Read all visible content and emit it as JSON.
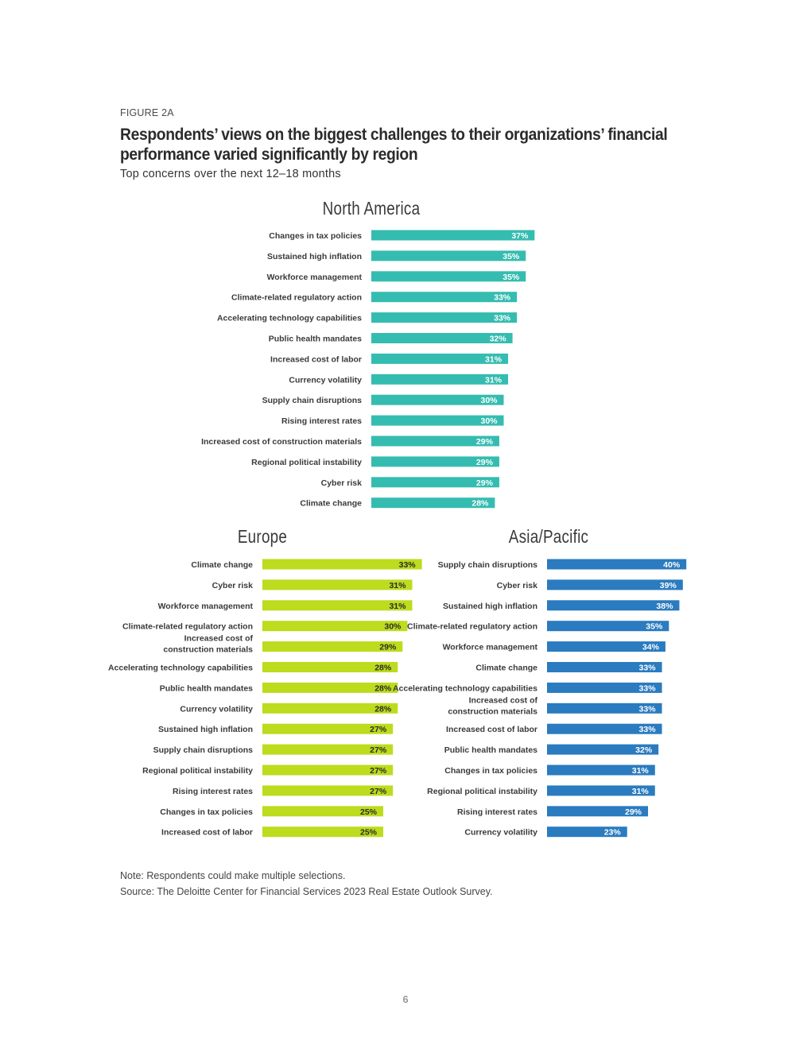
{
  "figure_label": "FIGURE 2A",
  "title_lines": [
    "Respondents’ views on the biggest challenges to their organizations’ financial",
    "performance varied significantly by region"
  ],
  "subtitle": "Top concerns over the next 12–18 months",
  "chart_data": [
    {
      "type": "bar",
      "orientation": "horizontal",
      "title": "North America",
      "color": "#35bcb0",
      "value_label_color": "#ffffff",
      "categories": [
        "Changes in tax policies",
        "Sustained high inflation",
        "Workforce management",
        "Climate-related regulatory action",
        "Accelerating technology capabilities",
        "Public health mandates",
        "Increased cost of labor",
        "Currency volatility",
        "Supply chain disruptions",
        "Rising interest rates",
        "Increased cost of construction materials",
        "Regional political instability",
        "Cyber risk",
        "Climate change"
      ],
      "values": [
        37,
        35,
        35,
        33,
        33,
        32,
        31,
        31,
        30,
        30,
        29,
        29,
        29,
        28
      ],
      "unit": "%"
    },
    {
      "type": "bar",
      "orientation": "horizontal",
      "title": "Europe",
      "color": "#bcdc1d",
      "value_label_color": "#2b2b2b",
      "categories": [
        "Climate change",
        "Cyber risk",
        "Workforce management",
        "Climate-related regulatory action",
        [
          "Increased cost of",
          "construction materials"
        ],
        "Accelerating technology capabilities",
        "Public health mandates",
        "Currency volatility",
        "Sustained high inflation",
        "Supply chain disruptions",
        "Regional political instability",
        "Rising interest rates",
        "Changes in tax policies",
        "Increased cost of labor"
      ],
      "values": [
        33,
        31,
        31,
        30,
        29,
        28,
        28,
        28,
        27,
        27,
        27,
        27,
        25,
        25
      ],
      "unit": "%"
    },
    {
      "type": "bar",
      "orientation": "horizontal",
      "title": "Asia/Pacific",
      "color": "#2a7bbf",
      "value_label_color": "#ffffff",
      "categories": [
        "Supply chain disruptions",
        "Cyber risk",
        "Sustained high inflation",
        "Climate-related regulatory action",
        "Workforce management",
        "Climate change",
        "Accelerating technology capabilities",
        [
          "Increased cost of",
          "construction materials"
        ],
        "Increased cost of labor",
        "Public health mandates",
        "Changes in tax policies",
        "Regional political instability",
        "Rising interest rates",
        "Currency volatility"
      ],
      "values": [
        40,
        39,
        38,
        35,
        34,
        33,
        33,
        33,
        33,
        32,
        31,
        31,
        29,
        23
      ],
      "unit": "%"
    }
  ],
  "note": "Note: Respondents could make multiple selections.",
  "source": "Source: The Deloitte Center for Financial Services 2023 Real Estate Outlook Survey.",
  "page_number": "6"
}
